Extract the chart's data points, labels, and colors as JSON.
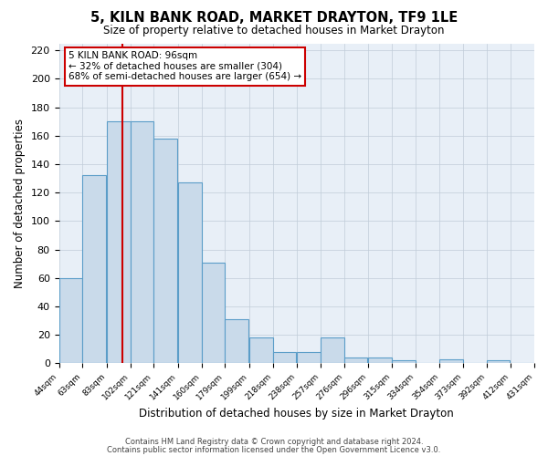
{
  "title": "5, KILN BANK ROAD, MARKET DRAYTON, TF9 1LE",
  "subtitle": "Size of property relative to detached houses in Market Drayton",
  "xlabel": "Distribution of detached houses by size in Market Drayton",
  "ylabel": "Number of detached properties",
  "bar_left_edges": [
    44,
    63,
    83,
    102,
    121,
    141,
    160,
    179,
    199,
    218,
    238,
    257,
    276,
    296,
    315,
    334,
    354,
    373,
    392,
    412
  ],
  "bar_widths": [
    19,
    19,
    19,
    19,
    19,
    19,
    19,
    19,
    19,
    19,
    19,
    19,
    19,
    19,
    19,
    19,
    19,
    19,
    19,
    19
  ],
  "bar_heights": [
    60,
    132,
    170,
    170,
    158,
    127,
    71,
    31,
    18,
    8,
    8,
    18,
    4,
    4,
    2,
    0,
    3,
    0,
    2,
    0
  ],
  "bar_color": "#c9daea",
  "bar_edge_color": "#5b9dc8",
  "x_tick_labels": [
    "44sqm",
    "63sqm",
    "83sqm",
    "102sqm",
    "121sqm",
    "141sqm",
    "160sqm",
    "179sqm",
    "199sqm",
    "218sqm",
    "238sqm",
    "257sqm",
    "276sqm",
    "296sqm",
    "315sqm",
    "334sqm",
    "354sqm",
    "373sqm",
    "392sqm",
    "412sqm",
    "431sqm"
  ],
  "ylim": [
    0,
    225
  ],
  "yticks": [
    0,
    20,
    40,
    60,
    80,
    100,
    120,
    140,
    160,
    180,
    200,
    220
  ],
  "vline_x": 96,
  "vline_color": "#cc0000",
  "annotation_line1": "5 KILN BANK ROAD: 96sqm",
  "annotation_line2": "← 32% of detached houses are smaller (304)",
  "annotation_line3": "68% of semi-detached houses are larger (654) →",
  "background_color": "#ffffff",
  "plot_bg_color": "#e8eff7",
  "grid_color": "#c0ccd8",
  "footnote1": "Contains HM Land Registry data © Crown copyright and database right 2024.",
  "footnote2": "Contains public sector information licensed under the Open Government Licence v3.0."
}
